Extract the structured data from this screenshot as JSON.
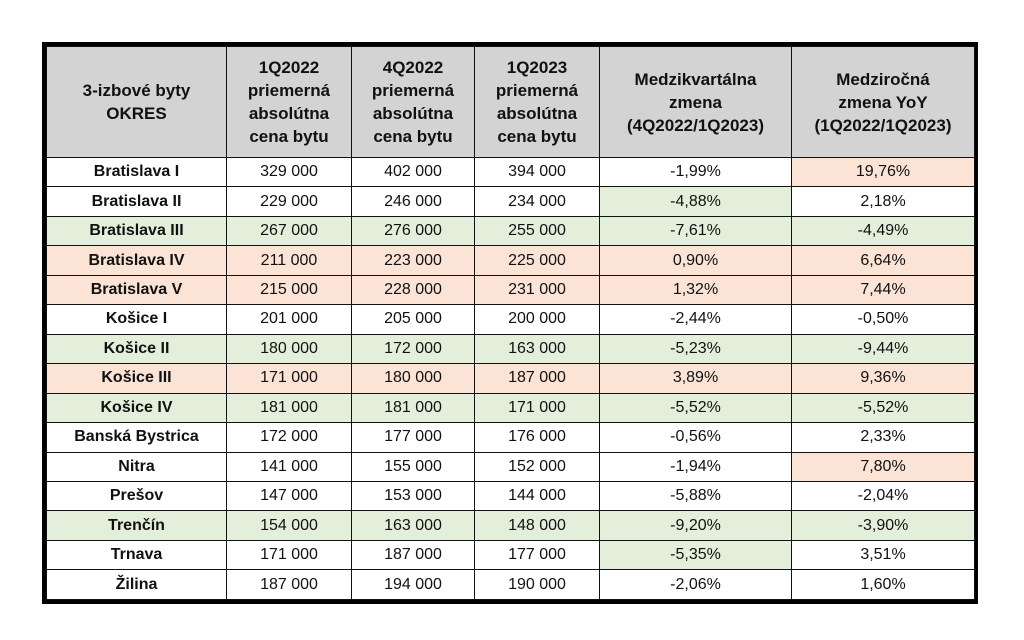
{
  "colors": {
    "header": "#d3d3d3",
    "green": "#e3efdb",
    "pink": "#fbe3d6",
    "white": "#ffffff"
  },
  "headers": [
    [
      "3-izbové byty",
      "OKRES"
    ],
    [
      "1Q2022",
      "priemerná",
      "absolútna",
      "cena bytu"
    ],
    [
      "4Q2022",
      "priemerná",
      "absolútna",
      "cena bytu"
    ],
    [
      "1Q2023",
      "priemerná",
      "absolútna",
      "cena bytu"
    ],
    [
      "Medzikvartálna",
      "zmena",
      "(4Q2022/1Q2023)"
    ],
    [
      "Medziročná",
      "zmena YoY",
      "(1Q2022/1Q2023)"
    ]
  ],
  "rows": [
    {
      "cells": [
        "Bratislava I",
        "329 000",
        "402 000",
        "394 000",
        "-1,99%",
        "19,76%"
      ],
      "fills": [
        "w",
        "w",
        "w",
        "w",
        "w",
        "p"
      ]
    },
    {
      "cells": [
        "Bratislava II",
        "229 000",
        "246 000",
        "234 000",
        "-4,88%",
        "2,18%"
      ],
      "fills": [
        "w",
        "w",
        "w",
        "w",
        "g",
        "w"
      ]
    },
    {
      "cells": [
        "Bratislava III",
        "267 000",
        "276 000",
        "255 000",
        "-7,61%",
        "-4,49%"
      ],
      "fills": [
        "g",
        "g",
        "g",
        "g",
        "g",
        "g"
      ]
    },
    {
      "cells": [
        "Bratislava IV",
        "211 000",
        "223 000",
        "225 000",
        "0,90%",
        "6,64%"
      ],
      "fills": [
        "p",
        "p",
        "p",
        "p",
        "p",
        "p"
      ]
    },
    {
      "cells": [
        "Bratislava V",
        "215 000",
        "228 000",
        "231 000",
        "1,32%",
        "7,44%"
      ],
      "fills": [
        "p",
        "p",
        "p",
        "p",
        "p",
        "p"
      ]
    },
    {
      "cells": [
        "Košice I",
        "201 000",
        "205 000",
        "200 000",
        "-2,44%",
        "-0,50%"
      ],
      "fills": [
        "w",
        "w",
        "w",
        "w",
        "w",
        "w"
      ]
    },
    {
      "cells": [
        "Košice II",
        "180 000",
        "172 000",
        "163 000",
        "-5,23%",
        "-9,44%"
      ],
      "fills": [
        "g",
        "g",
        "g",
        "g",
        "g",
        "g"
      ]
    },
    {
      "cells": [
        "Košice III",
        "171 000",
        "180 000",
        "187 000",
        "3,89%",
        "9,36%"
      ],
      "fills": [
        "p",
        "p",
        "p",
        "p",
        "p",
        "p"
      ]
    },
    {
      "cells": [
        "Košice IV",
        "181 000",
        "181 000",
        "171 000",
        "-5,52%",
        "-5,52%"
      ],
      "fills": [
        "g",
        "g",
        "g",
        "g",
        "g",
        "g"
      ]
    },
    {
      "cells": [
        "Banská Bystrica",
        "172 000",
        "177 000",
        "176 000",
        "-0,56%",
        "2,33%"
      ],
      "fills": [
        "w",
        "w",
        "w",
        "w",
        "w",
        "w"
      ]
    },
    {
      "cells": [
        "Nitra",
        "141 000",
        "155 000",
        "152 000",
        "-1,94%",
        "7,80%"
      ],
      "fills": [
        "w",
        "w",
        "w",
        "w",
        "w",
        "p"
      ]
    },
    {
      "cells": [
        "Prešov",
        "147 000",
        "153 000",
        "144 000",
        "-5,88%",
        "-2,04%"
      ],
      "fills": [
        "w",
        "w",
        "w",
        "w",
        "w",
        "w"
      ]
    },
    {
      "cells": [
        "Trenčín",
        "154 000",
        "163 000",
        "148 000",
        "-9,20%",
        "-3,90%"
      ],
      "fills": [
        "g",
        "g",
        "g",
        "g",
        "g",
        "g"
      ]
    },
    {
      "cells": [
        "Trnava",
        "171 000",
        "187 000",
        "177 000",
        "-5,35%",
        "3,51%"
      ],
      "fills": [
        "w",
        "w",
        "w",
        "w",
        "g",
        "w"
      ]
    },
    {
      "cells": [
        "Žilina",
        "187 000",
        "194 000",
        "190 000",
        "-2,06%",
        "1,60%"
      ],
      "fills": [
        "w",
        "w",
        "w",
        "w",
        "w",
        "w"
      ]
    }
  ]
}
